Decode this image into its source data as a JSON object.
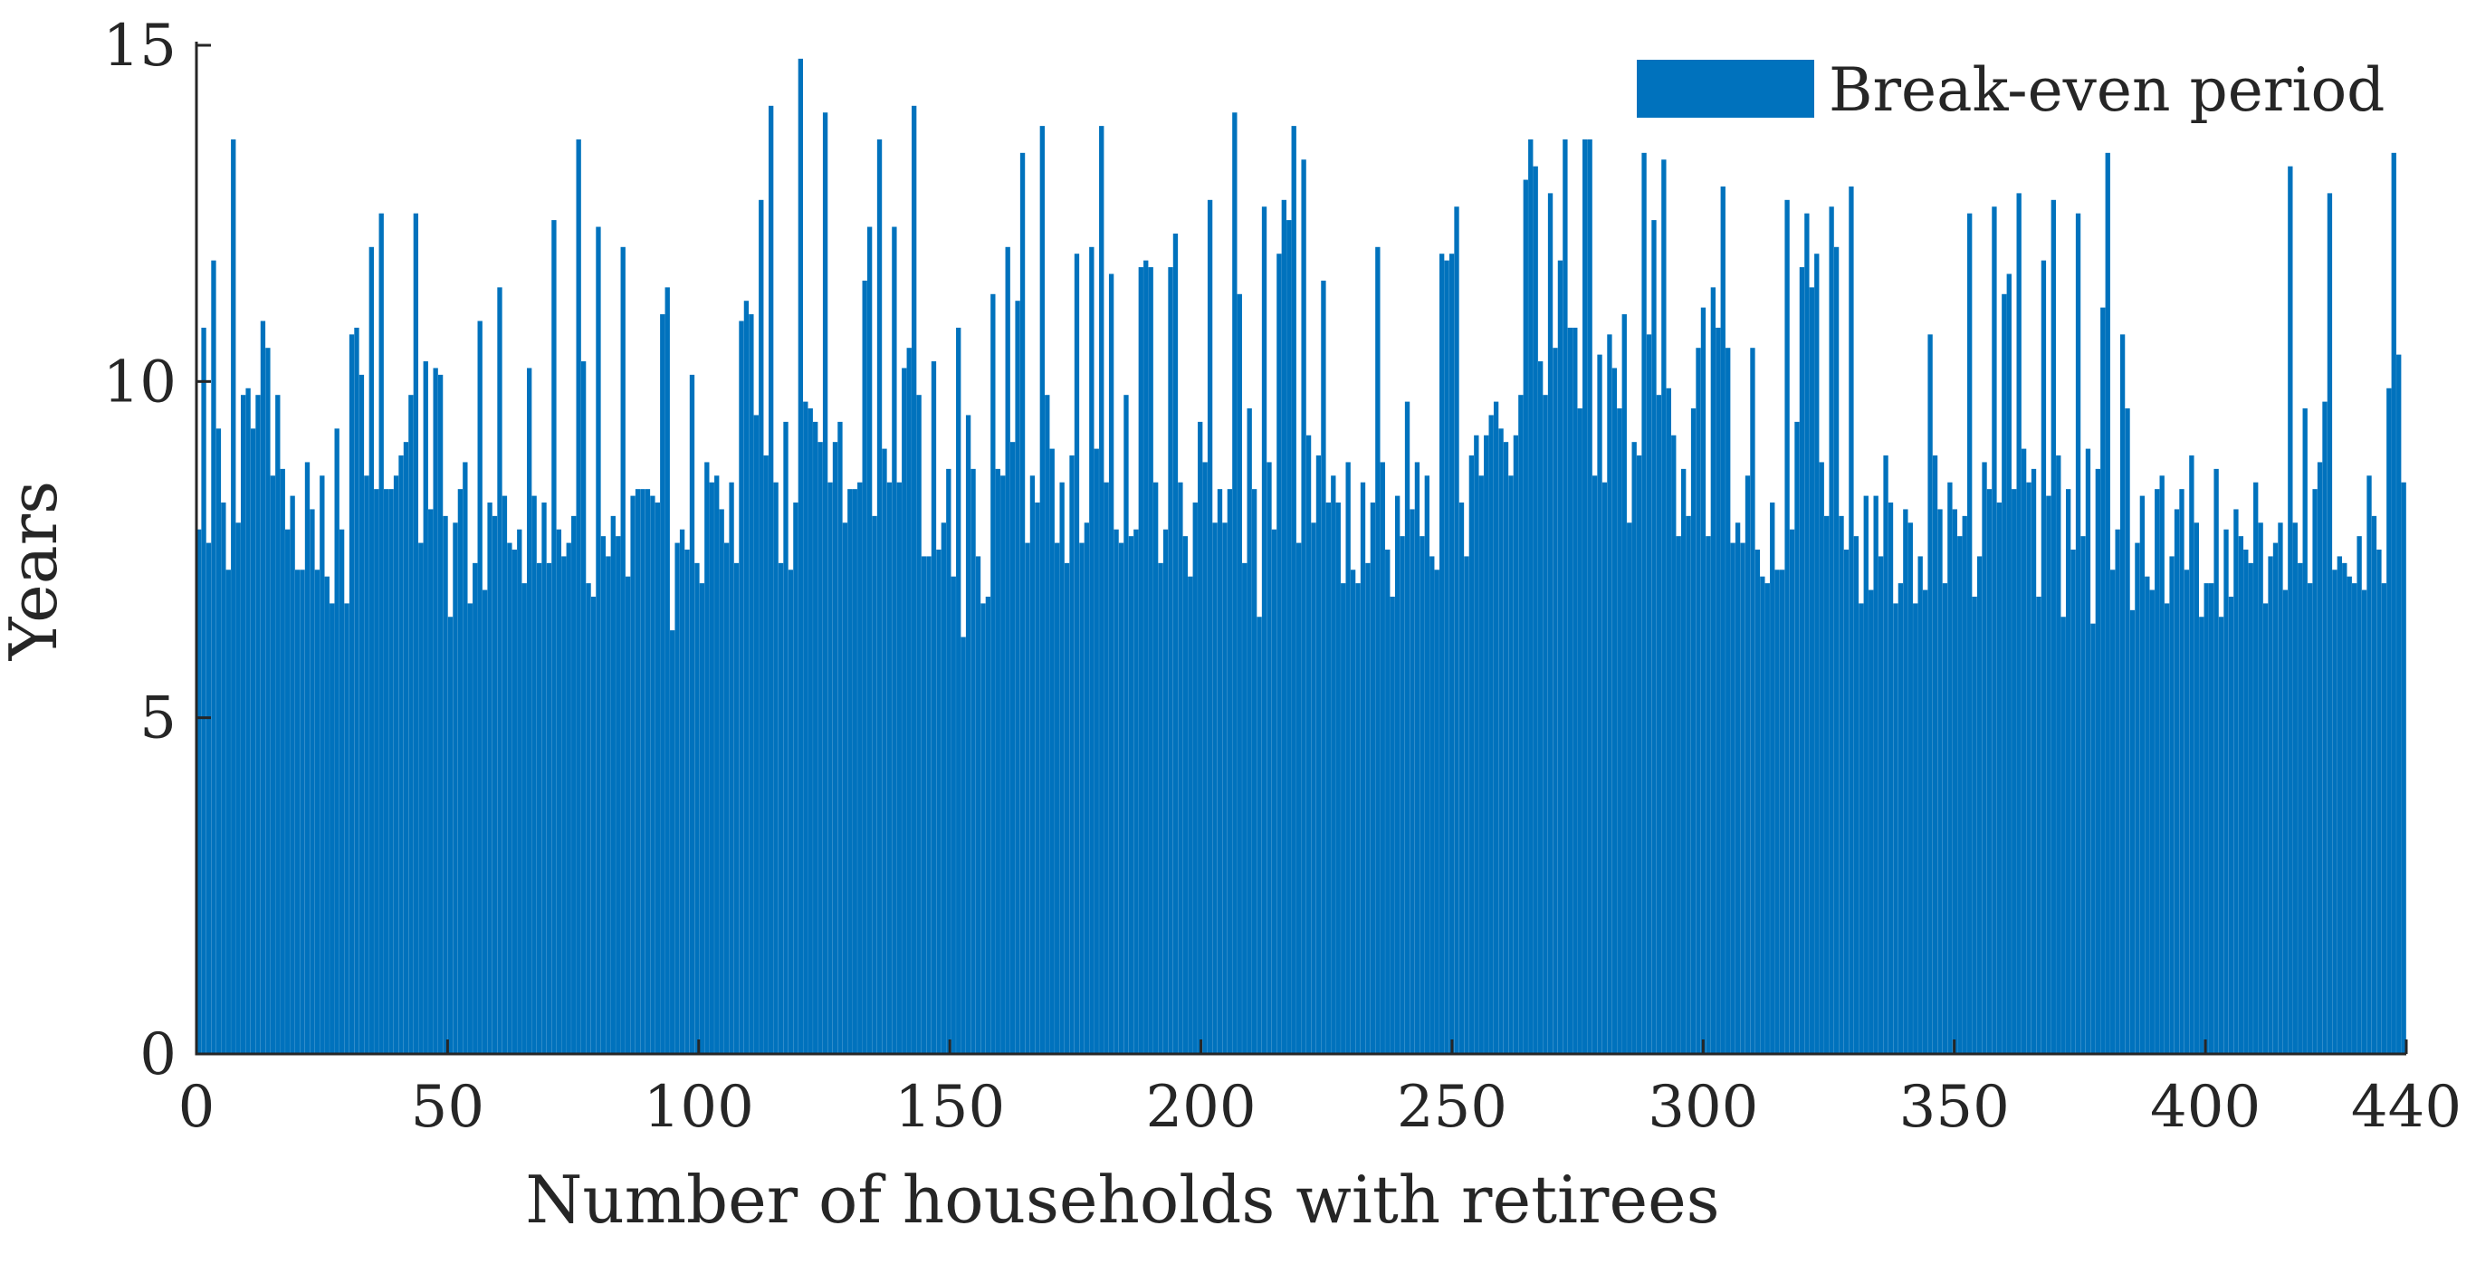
{
  "chart_data": {
    "type": "bar",
    "title": "",
    "xlabel": "Number of households with retirees",
    "ylabel": "Years",
    "xlim": [
      0,
      440
    ],
    "ylim": [
      0,
      15
    ],
    "xticks": [
      0,
      50,
      100,
      150,
      200,
      250,
      300,
      350,
      400,
      440
    ],
    "xtick_labels": [
      "0",
      "50",
      "100",
      "150",
      "200",
      "250",
      "300",
      "350",
      "400",
      "440"
    ],
    "yticks": [
      0,
      5,
      10,
      15
    ],
    "ytick_labels": [
      "0",
      "5",
      "10",
      "15"
    ],
    "grid": false,
    "legend_position": "top-right",
    "series": [
      {
        "name": "Break-even period",
        "color": "#0072bd",
        "values": [
          7.8,
          10.8,
          7.6,
          11.8,
          9.3,
          8.2,
          7.2,
          13.6,
          7.9,
          9.8,
          9.9,
          9.3,
          9.8,
          10.9,
          10.5,
          8.6,
          9.8,
          8.7,
          7.8,
          8.3,
          7.2,
          7.2,
          8.8,
          8.1,
          7.2,
          8.6,
          7.1,
          6.7,
          9.3,
          7.8,
          6.7,
          10.7,
          10.8,
          10.1,
          8.6,
          12,
          8.4,
          12.5,
          8.4,
          8.4,
          8.6,
          8.9,
          9.1,
          9.8,
          12.5,
          7.6,
          10.3,
          8.1,
          10.2,
          10.1,
          8.0,
          6.5,
          7.9,
          8.4,
          8.8,
          6.7,
          7.3,
          10.9,
          6.9,
          8.2,
          8.0,
          11.4,
          8.3,
          7.6,
          7.5,
          7.8,
          7.0,
          10.2,
          8.3,
          7.3,
          8.2,
          7.3,
          12.4,
          7.8,
          7.4,
          7.6,
          8.0,
          13.6,
          10.3,
          7.0,
          6.8,
          12.3,
          7.7,
          7.4,
          8.0,
          7.7,
          12.0,
          7.1,
          8.3,
          8.4,
          8.4,
          8.4,
          8.3,
          8.2,
          11.0,
          11.4,
          6.3,
          7.6,
          7.8,
          7.5,
          10.1,
          7.3,
          7.0,
          8.8,
          8.5,
          8.6,
          8.1,
          7.6,
          8.5,
          7.3,
          10.9,
          11.2,
          11.0,
          9.5,
          12.7,
          8.9,
          14.1,
          8.5,
          7.3,
          9.4,
          7.2,
          8.2,
          14.8,
          9.7,
          9.6,
          9.4,
          9.1,
          14.0,
          8.5,
          9.1,
          9.4,
          7.9,
          8.4,
          8.4,
          8.5,
          11.5,
          12.3,
          8.0,
          13.6,
          9.0,
          8.5,
          12.3,
          8.5,
          10.2,
          10.5,
          14.1,
          9.8,
          7.4,
          7.4,
          10.3,
          7.5,
          7.9,
          8.7,
          7.1,
          10.8,
          6.2,
          9.5,
          8.7,
          7.4,
          6.7,
          6.8,
          11.3,
          8.7,
          8.6,
          12.0,
          9.1,
          11.2,
          13.4,
          7.6,
          8.6,
          8.2,
          13.8,
          9.8,
          9.0,
          7.6,
          8.5,
          7.3,
          8.9,
          11.9,
          7.6,
          7.9,
          12.0,
          9.0,
          13.8,
          8.5,
          11.6,
          7.8,
          7.6,
          9.8,
          7.7,
          7.8,
          11.7,
          11.8,
          11.7,
          8.5,
          7.3,
          7.8,
          11.7,
          12.2,
          8.5,
          7.7,
          7.1,
          8.2,
          9.4,
          8.8,
          12.7,
          7.9,
          8.4,
          7.9,
          8.4,
          14.0,
          11.3,
          7.3,
          9.6,
          8.4,
          6.5,
          12.6,
          8.8,
          7.8,
          11.9,
          12.7,
          12.4,
          13.8,
          7.6,
          13.3,
          9.2,
          7.9,
          8.9,
          11.5,
          8.2,
          8.6,
          8.2,
          7.0,
          8.8,
          7.2,
          7.0,
          8.5,
          7.3,
          8.2,
          12.0,
          8.8,
          7.5,
          6.8,
          8.3,
          7.7,
          9.7,
          8.1,
          8.8,
          7.7,
          8.6,
          7.4,
          7.2,
          11.9,
          11.8,
          11.9,
          12.6,
          8.2,
          7.4,
          8.9,
          9.2,
          8.6,
          9.2,
          9.5,
          9.7,
          9.3,
          9.1,
          8.6,
          9.2,
          9.8,
          13.0,
          13.6,
          13.2,
          10.3,
          9.8,
          12.8,
          10.5,
          11.8,
          13.6,
          10.8,
          10.8,
          9.6,
          13.6,
          13.6,
          8.6,
          10.4,
          8.5,
          10.7,
          10.2,
          9.6,
          11.0,
          7.9,
          9.1,
          8.9,
          13.4,
          10.7,
          12.4,
          9.8,
          13.3,
          9.9,
          9.2,
          7.7,
          8.7,
          8.0,
          9.6,
          10.5,
          11.1,
          7.7,
          11.4,
          10.8,
          12.9,
          10.5,
          7.6,
          7.9,
          7.6,
          8.6,
          10.5,
          7.5,
          7.1,
          7.0,
          8.2,
          7.2,
          7.2,
          12.7,
          7.8,
          9.4,
          11.7,
          12.5,
          11.4,
          11.9,
          8.8,
          8.0,
          12.6,
          12.0,
          8.0,
          7.5,
          12.9,
          7.7,
          6.7,
          8.3,
          6.9,
          8.3,
          7.4,
          8.9,
          8.2,
          6.7,
          7.0,
          8.1,
          7.9,
          6.7,
          7.4,
          6.9,
          10.7,
          8.9,
          8.1,
          7.0,
          8.5,
          8.1,
          7.7,
          8.0,
          12.5,
          6.8,
          7.4,
          8.8,
          8.4,
          12.6,
          8.2,
          11.3,
          11.6,
          8.4,
          12.8,
          9.0,
          8.5,
          8.7,
          6.8,
          11.8,
          8.3,
          12.7,
          8.9,
          6.5,
          8.4,
          7.5,
          12.5,
          7.7,
          9.0,
          6.4,
          8.7,
          11.1,
          13.4,
          7.2,
          7.8,
          10.7,
          9.6,
          6.6,
          7.6,
          8.3,
          7.1,
          6.9,
          8.4,
          8.6,
          6.7,
          7.4,
          8.1,
          8.4,
          7.2,
          8.9,
          7.9,
          6.5,
          7.0,
          7.0,
          8.7,
          6.5,
          7.8,
          6.8,
          8.1,
          7.7,
          7.5,
          7.3,
          8.5,
          7.9,
          6.7,
          7.4,
          7.6,
          7.9,
          6.9,
          13.2,
          7.9,
          7.3,
          9.6,
          7.0,
          8.4,
          8.8,
          9.7,
          12.8,
          7.2,
          7.4,
          7.3,
          7.1,
          7.0,
          7.7,
          6.9,
          8.6,
          8.0,
          7.5,
          7.0,
          9.9,
          13.4,
          10.4,
          8.5
        ]
      }
    ]
  }
}
